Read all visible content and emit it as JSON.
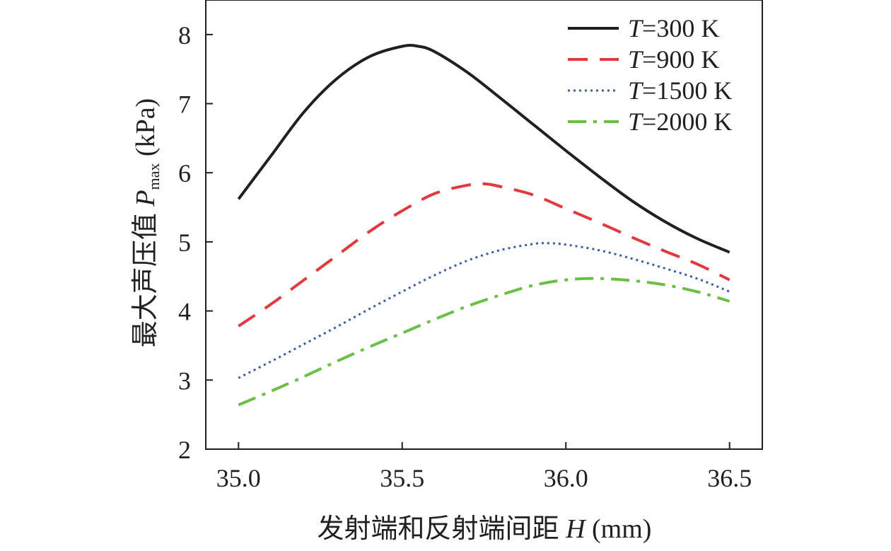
{
  "chart_data": {
    "type": "line",
    "xlabel": "发射端和反射端间距 H (mm)",
    "xlabel_parts": {
      "text": "发射端和反射端间距 ",
      "var": "H",
      "unit": " (mm)"
    },
    "ylabel": "最大声压值 Pmax (kPa)",
    "ylabel_parts": {
      "text": "最大声压值 ",
      "var": "P",
      "sub": "max",
      "unit": " (kPa)"
    },
    "xlim": [
      34.9,
      36.6
    ],
    "ylim": [
      2,
      8.5
    ],
    "xticks": [
      35.0,
      35.5,
      36.0,
      36.5
    ],
    "xtick_labels": [
      "35.0",
      "35.5",
      "36.0",
      "36.5"
    ],
    "yticks": [
      2,
      3,
      4,
      5,
      6,
      7,
      8
    ],
    "ytick_labels": [
      "2",
      "3",
      "4",
      "5",
      "6",
      "7",
      "8"
    ],
    "grid": false,
    "legend_position": "top-right",
    "series": [
      {
        "name": "T=300 K",
        "legend_var": "T",
        "legend_rest": "=300 K",
        "color": "#231f20",
        "style": "solid",
        "x": [
          35.0,
          35.1,
          35.2,
          35.3,
          35.4,
          35.5,
          35.55,
          35.6,
          35.7,
          35.8,
          35.9,
          36.0,
          36.1,
          36.2,
          36.3,
          36.4,
          36.5
        ],
        "y": [
          5.62,
          6.25,
          6.88,
          7.36,
          7.68,
          7.83,
          7.83,
          7.75,
          7.45,
          7.08,
          6.7,
          6.32,
          5.95,
          5.6,
          5.3,
          5.05,
          4.85
        ]
      },
      {
        "name": "T=900 K",
        "legend_var": "T",
        "legend_rest": "=900 K",
        "color": "#e03a3e",
        "style": "dashed",
        "x": [
          35.0,
          35.1,
          35.2,
          35.3,
          35.4,
          35.5,
          35.6,
          35.7,
          35.75,
          35.8,
          35.9,
          36.0,
          36.1,
          36.2,
          36.3,
          36.4,
          36.5
        ],
        "y": [
          3.78,
          4.1,
          4.45,
          4.8,
          5.15,
          5.45,
          5.7,
          5.82,
          5.84,
          5.8,
          5.68,
          5.48,
          5.28,
          5.07,
          4.87,
          4.68,
          4.45
        ]
      },
      {
        "name": "T=1500 K",
        "legend_var": "T",
        "legend_rest": "=1500 K",
        "color": "#3a5ba8",
        "style": "dotted",
        "x": [
          35.0,
          35.1,
          35.2,
          35.3,
          35.4,
          35.5,
          35.6,
          35.7,
          35.8,
          35.9,
          35.95,
          36.0,
          36.1,
          36.2,
          36.3,
          36.4,
          36.5
        ],
        "y": [
          3.03,
          3.27,
          3.52,
          3.77,
          4.03,
          4.28,
          4.52,
          4.73,
          4.88,
          4.97,
          4.98,
          4.96,
          4.88,
          4.76,
          4.62,
          4.47,
          4.28
        ]
      },
      {
        "name": "T=2000 K",
        "legend_var": "T",
        "legend_rest": "=2000 K",
        "color": "#6abf45",
        "style": "dashdot",
        "x": [
          35.0,
          35.1,
          35.2,
          35.3,
          35.4,
          35.5,
          35.6,
          35.7,
          35.8,
          35.9,
          36.0,
          36.1,
          36.2,
          36.3,
          36.4,
          36.5
        ],
        "y": [
          2.64,
          2.84,
          3.05,
          3.27,
          3.48,
          3.68,
          3.88,
          4.07,
          4.23,
          4.37,
          4.45,
          4.47,
          4.44,
          4.38,
          4.28,
          4.14
        ]
      }
    ]
  }
}
